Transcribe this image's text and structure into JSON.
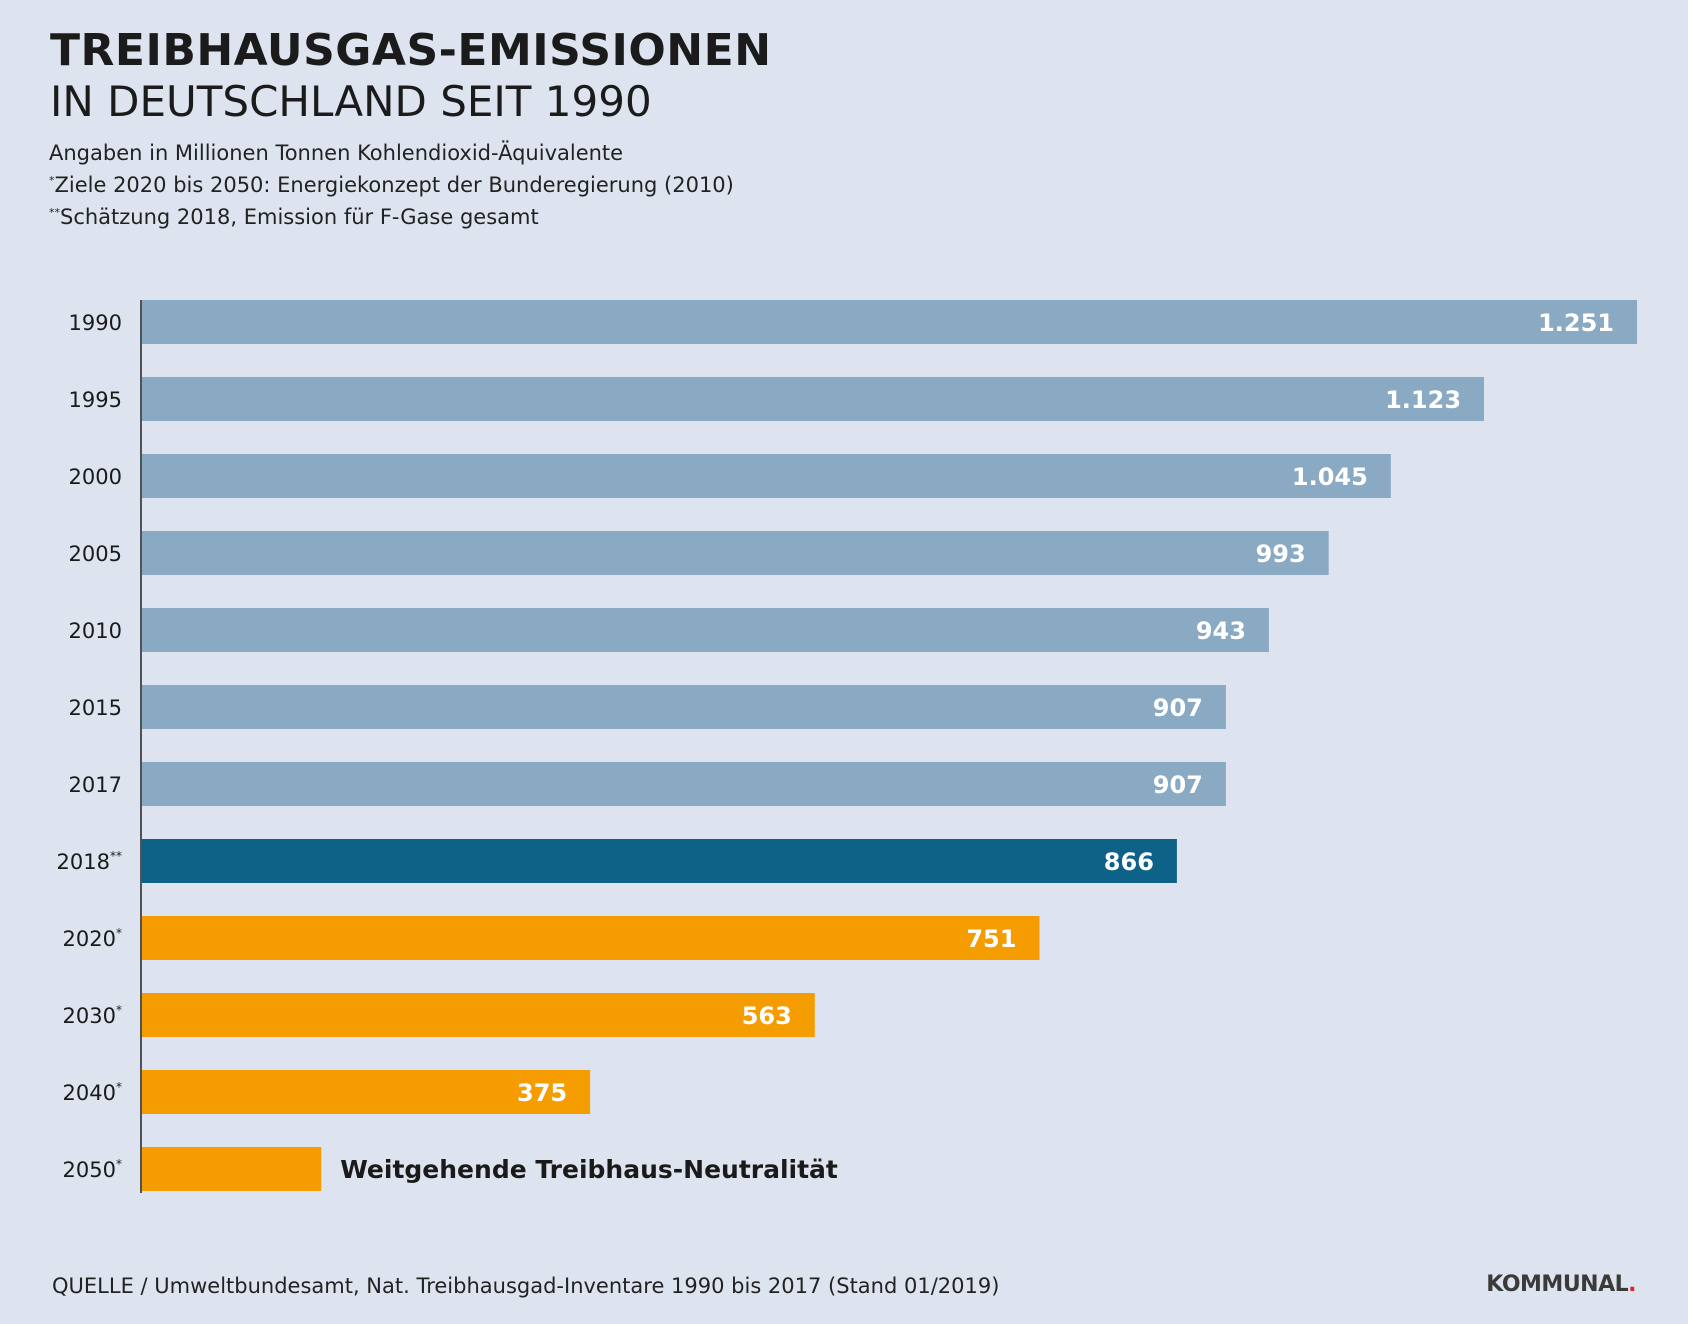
{
  "header": {
    "title_bold": "TREIBHAUSGAS-EMISSIONEN",
    "title_light": "IN DEUTSCHLAND SEIT 1990",
    "note_units": "Angaben in Millionen Tonnen Kohlendioxid-Äquivalente",
    "note1_marker": "*",
    "note1_text": "Ziele 2020 bis 2050: Energiekonzept der Bunderegierung (2010)",
    "note2_marker": "**",
    "note2_text": "Schätzung 2018, Emission für F-Gase gesamt"
  },
  "chart_data": {
    "type": "bar",
    "orientation": "horizontal",
    "title": "TREIBHAUSGAS-EMISSIONEN IN DEUTSCHLAND SEIT 1990",
    "unit": "Millionen Tonnen Kohlendioxid-Äquivalente",
    "categories": [
      "1990",
      "1995",
      "2000",
      "2005",
      "2010",
      "2015",
      "2017",
      "2018",
      "2020",
      "2030",
      "2040",
      "2050"
    ],
    "category_markers": [
      "",
      "",
      "",
      "",
      "",
      "",
      "",
      "**",
      "*",
      "*",
      "*",
      "*"
    ],
    "values": [
      1251,
      1123,
      1045,
      993,
      943,
      907,
      907,
      866,
      751,
      563,
      375,
      150
    ],
    "value_labels": [
      "1.251",
      "1.123",
      "1.045",
      "993",
      "943",
      "907",
      "907",
      "866",
      "751",
      "563",
      "375",
      ""
    ],
    "bar_kind": [
      "historic",
      "historic",
      "historic",
      "historic",
      "historic",
      "historic",
      "historic",
      "estimate",
      "target",
      "target",
      "target",
      "target"
    ],
    "annotation_2050": "Weitgehende Treibhaus-Neutralität",
    "xlim": [
      0,
      1251
    ],
    "grid": false,
    "colors": {
      "historic": "#8aa9c3",
      "estimate": "#0f6287",
      "target": "#f59d00"
    }
  },
  "footer": {
    "source_label": "QUELLE",
    "source_text": " / Umweltbundesamt, Nat. Treibhausgad-Inventare 1990 bis 2017 (Stand 01/2019)",
    "brand": "KOMMUNAL",
    "brand_dot": "."
  }
}
